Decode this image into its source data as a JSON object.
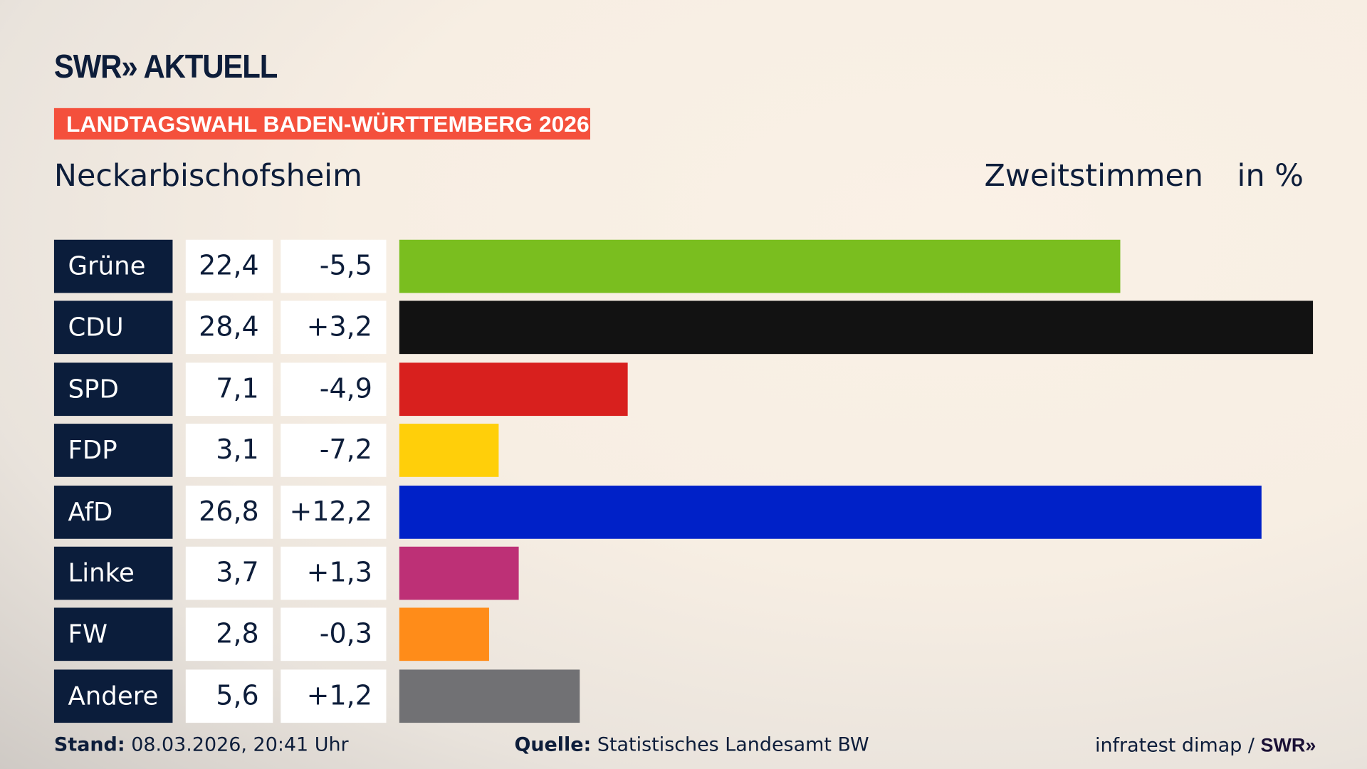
{
  "header": {
    "logo": "SWR» AKTUELL",
    "banner": "LANDTAGSWAHL BADEN-WÜRTTEMBERG 2026",
    "place": "Neckarbischofsheim",
    "vote_type": "Zweitstimmen",
    "unit": "in %"
  },
  "chart_data": {
    "type": "bar",
    "orientation": "horizontal",
    "categories": [
      "Grüne",
      "CDU",
      "SPD",
      "FDP",
      "AfD",
      "Linke",
      "FW",
      "Andere"
    ],
    "values": [
      22.4,
      28.4,
      7.1,
      3.1,
      26.8,
      3.7,
      2.8,
      5.6
    ],
    "value_labels": [
      "22,4",
      "28,4",
      "7,1",
      "3,1",
      "26,8",
      "3,7",
      "2,8",
      "5,6"
    ],
    "change_labels": [
      "-5,5",
      "+3,2",
      "-4,9",
      "-7,2",
      "+12,2",
      "+1,3",
      "-0,3",
      "+1,2"
    ],
    "changes": [
      -5.5,
      3.2,
      -4.9,
      -7.2,
      12.2,
      1.3,
      -0.3,
      1.2
    ],
    "colors": [
      "#7abe1f",
      "#121212",
      "#d8201e",
      "#ffcf0a",
      "#0021c8",
      "#bd3076",
      "#ff8c19",
      "#717174"
    ],
    "xlim": [
      0,
      28.4
    ]
  },
  "footer": {
    "stand_label": "Stand:",
    "stand_value": "08.03.2026, 20:41 Uhr",
    "source_label": "Quelle:",
    "source_value": "Statistisches Landesamt BW",
    "credit": "infratest dimap /",
    "credit_logo": "SWR»"
  }
}
